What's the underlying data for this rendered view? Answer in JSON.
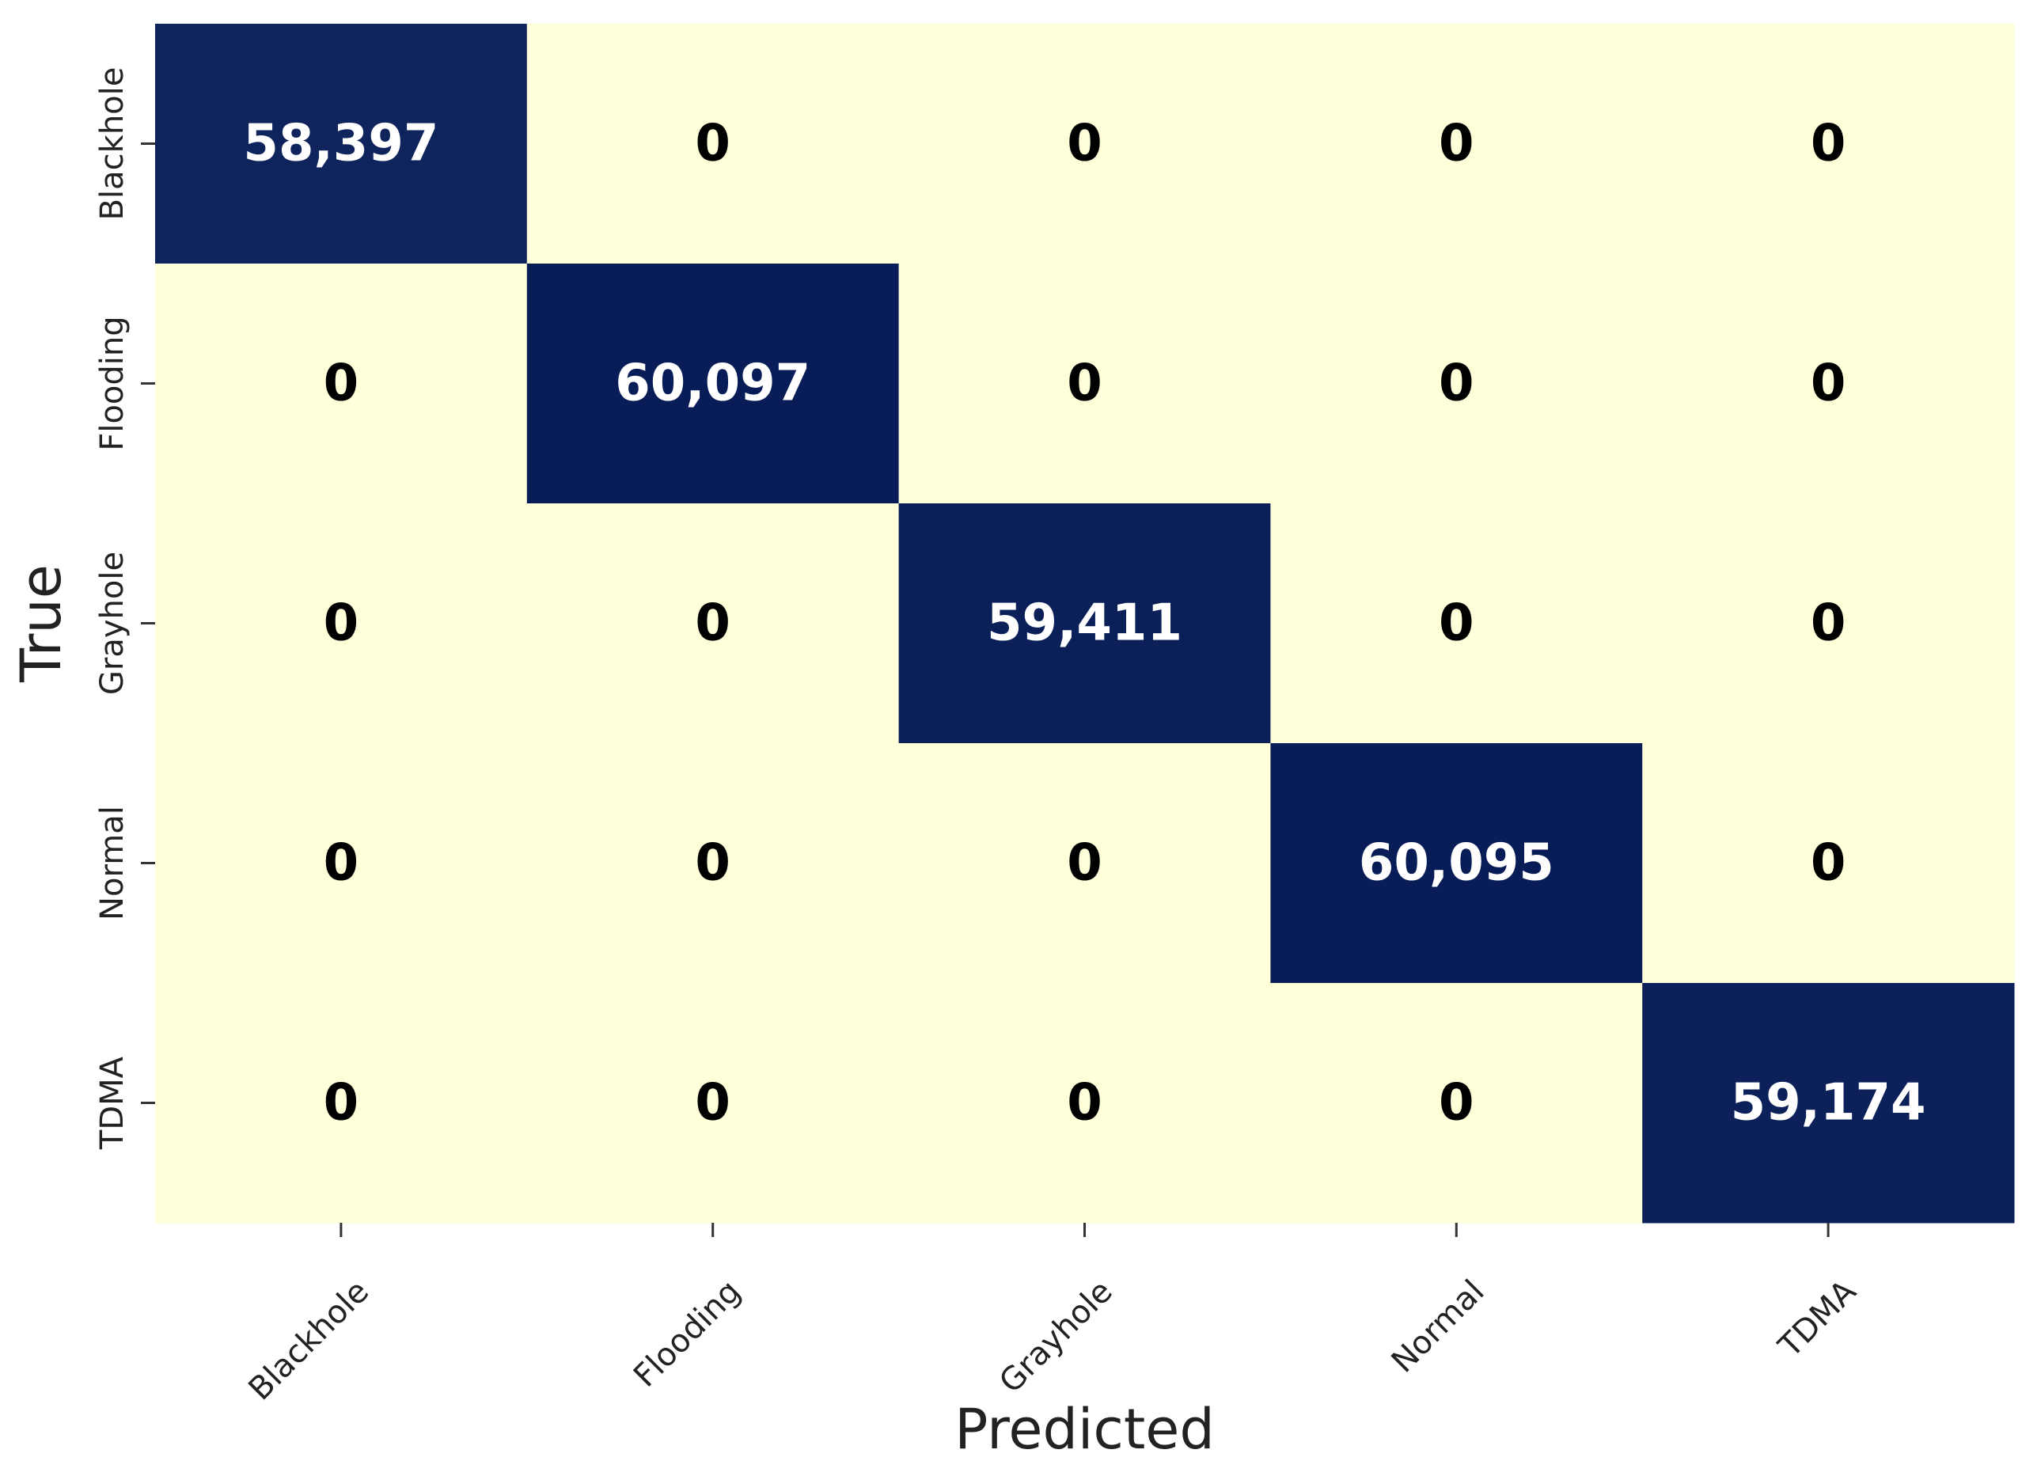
{
  "chart_data": {
    "type": "heatmap",
    "title": "",
    "xlabel": "Predicted",
    "ylabel": "True",
    "x_categories": [
      "Blackhole",
      "Flooding",
      "Grayhole",
      "Normal",
      "TDMA"
    ],
    "y_categories": [
      "Blackhole",
      "Flooding",
      "Grayhole",
      "Normal",
      "TDMA"
    ],
    "values": [
      [
        58397,
        0,
        0,
        0,
        0
      ],
      [
        0,
        60097,
        0,
        0,
        0
      ],
      [
        0,
        0,
        59411,
        0,
        0
      ],
      [
        0,
        0,
        0,
        60095,
        0
      ],
      [
        0,
        0,
        0,
        0,
        59174
      ]
    ],
    "labels": [
      [
        "58,397",
        "0",
        "0",
        "0",
        "0"
      ],
      [
        "0",
        "60,097",
        "0",
        "0",
        "0"
      ],
      [
        "0",
        "0",
        "59,411",
        "0",
        "0"
      ],
      [
        "0",
        "0",
        "0",
        "60,095",
        "0"
      ],
      [
        "0",
        "0",
        "0",
        "0",
        "59,174"
      ]
    ],
    "colorscale": {
      "low": "#ffffd9",
      "high": "#081d58",
      "text_on_low": "#000000",
      "text_on_high": "#ffffff"
    },
    "colorbar": false,
    "grid": false
  }
}
